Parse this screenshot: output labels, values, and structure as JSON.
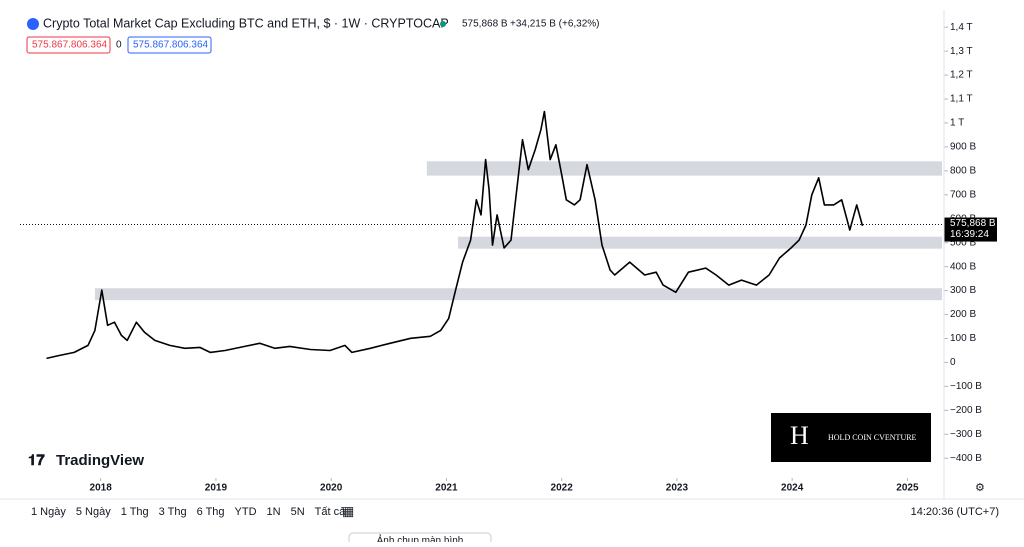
{
  "chart_data": {
    "type": "line",
    "title": "Crypto Total Market Cap Excluding BTC and ETH, $ · 1W · CRYPTOCAP",
    "last_value": "575,868 B",
    "change": "+34,215 B (+6,32%)",
    "inputs": [
      "575.867.806.364",
      "0",
      "575.867.806.364"
    ],
    "brand": "TradingView",
    "watermark": "HOLD COIN CVENTURE",
    "last_price": {
      "value": 575.868,
      "label": "575,868 B"
    },
    "countdown": "16:39:24",
    "timeframes": [
      "1 Ngày",
      "5 Ngày",
      "1 Thg",
      "3 Thg",
      "6 Thg",
      "YTD",
      "1N",
      "5N",
      "Tất cả"
    ],
    "clock": "14:20:36 (UTC+7)",
    "screenshot_button": "Ảnh chụp màn hình",
    "color": "#000000",
    "x": [
      2017.53,
      2017.64,
      2017.77,
      2017.89,
      2017.95,
      2018.01,
      2018.06,
      2018.12,
      2018.18,
      2018.23,
      2018.31,
      2018.38,
      2018.47,
      2018.6,
      2018.73,
      2018.86,
      2018.95,
      2019.08,
      2019.25,
      2019.38,
      2019.51,
      2019.64,
      2019.82,
      2019.99,
      2020.12,
      2020.18,
      2020.34,
      2020.51,
      2020.69,
      2020.86,
      2020.95,
      2021.02,
      2021.08,
      2021.14,
      2021.21,
      2021.26,
      2021.3,
      2021.34,
      2021.37,
      2021.4,
      2021.44,
      2021.5,
      2021.56,
      2021.6,
      2021.66,
      2021.71,
      2021.77,
      2021.82,
      2021.85,
      2021.9,
      2021.95,
      2022.0,
      2022.04,
      2022.11,
      2022.16,
      2022.22,
      2022.29,
      2022.35,
      2022.42,
      2022.46,
      2022.59,
      2022.72,
      2022.82,
      2022.88,
      2022.99,
      2023.1,
      2023.25,
      2023.34,
      2023.45,
      2023.56,
      2023.69,
      2023.8,
      2023.89,
      2023.99,
      2024.06,
      2024.12,
      2024.17,
      2024.23,
      2024.28,
      2024.36,
      2024.43,
      2024.5,
      2024.56,
      2024.61
    ],
    "values": [
      17,
      29,
      42,
      71,
      134,
      302,
      155,
      168,
      113,
      92,
      168,
      126,
      92,
      71,
      59,
      63,
      42,
      50,
      67,
      80,
      59,
      67,
      54,
      50,
      71,
      42,
      59,
      80,
      101,
      109,
      134,
      184,
      302,
      419,
      511,
      679,
      616,
      847,
      721,
      490,
      616,
      478,
      511,
      679,
      930,
      805,
      889,
      972,
      1048,
      847,
      909,
      784,
      679,
      658,
      679,
      826,
      679,
      490,
      386,
      365,
      419,
      365,
      377,
      323,
      293,
      377,
      394,
      365,
      323,
      344,
      323,
      365,
      436,
      478,
      511,
      574,
      700,
      771,
      658,
      658,
      679,
      553,
      658,
      570
    ],
    "zones": [
      {
        "from": 2020.83,
        "to": 2025.3,
        "low": 780,
        "high": 840
      },
      {
        "from": 2021.1,
        "to": 2025.3,
        "low": 475,
        "high": 525
      },
      {
        "from": 2017.95,
        "to": 2025.3,
        "low": 260,
        "high": 310
      }
    ],
    "xlim": [
      2017.3,
      2025.3
    ],
    "xticks": [
      2018,
      2019,
      2020,
      2021,
      2022,
      2023,
      2024,
      2025
    ],
    "ylim": [
      -470,
      1430
    ],
    "yticks": [
      {
        "value": 1400,
        "label": "1,4 T"
      },
      {
        "value": 1300,
        "label": "1,3 T"
      },
      {
        "value": 1200,
        "label": "1,2 T"
      },
      {
        "value": 1100,
        "label": "1,1 T"
      },
      {
        "value": 1000,
        "label": "1 T"
      },
      {
        "value": 900,
        "label": "900 B"
      },
      {
        "value": 800,
        "label": "800 B"
      },
      {
        "value": 700,
        "label": "700 B"
      },
      {
        "value": 600,
        "label": "600 B"
      },
      {
        "value": 500,
        "label": "500 B"
      },
      {
        "value": 400,
        "label": "400 B"
      },
      {
        "value": 300,
        "label": "300 B"
      },
      {
        "value": 200,
        "label": "200 B"
      },
      {
        "value": 100,
        "label": "100 B"
      },
      0,
      {
        "value": -100,
        "label": "−100 B"
      },
      {
        "value": -200,
        "label": "−200 B"
      },
      {
        "value": -300,
        "label": "−300 B"
      },
      {
        "value": -400,
        "label": "−400 B"
      }
    ]
  }
}
